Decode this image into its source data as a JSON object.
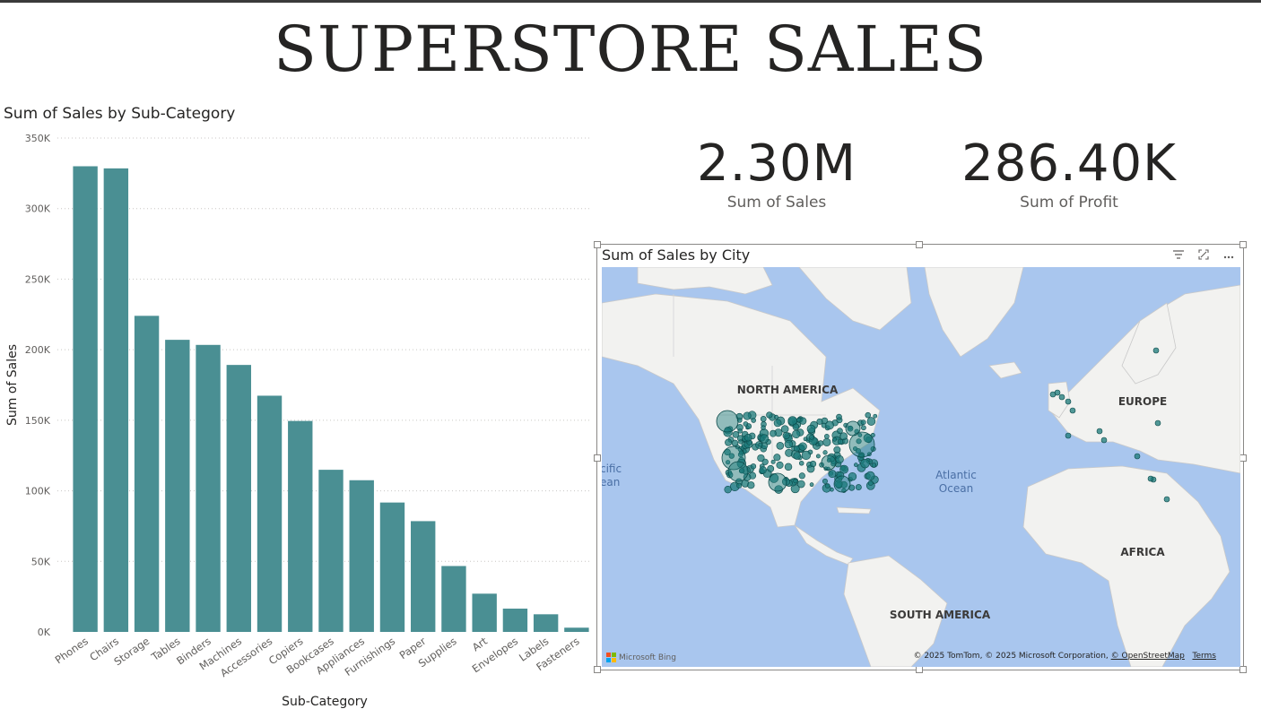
{
  "page": {
    "title": "SUPERSTORE SALES"
  },
  "kpis": [
    {
      "value": "2.30M",
      "label": "Sum of Sales"
    },
    {
      "value": "286.40K",
      "label": "Sum of Profit"
    }
  ],
  "chart_data": [
    {
      "type": "bar",
      "title": "Sum of Sales by Sub-Category",
      "xlabel": "Sub-Category",
      "ylabel": "Sum of Sales",
      "categories": [
        "Phones",
        "Chairs",
        "Storage",
        "Tables",
        "Binders",
        "Machines",
        "Accessories",
        "Copiers",
        "Bookcases",
        "Appliances",
        "Furnishings",
        "Paper",
        "Supplies",
        "Art",
        "Envelopes",
        "Labels",
        "Fasteners"
      ],
      "values": [
        330000,
        328500,
        224000,
        207000,
        203400,
        189200,
        167400,
        149500,
        114900,
        107500,
        91700,
        78500,
        46700,
        27100,
        16500,
        12500,
        3000
      ],
      "ylim": [
        0,
        350000
      ],
      "yticks": [
        0,
        50000,
        100000,
        150000,
        200000,
        250000,
        300000,
        350000
      ],
      "ytick_labels": [
        "0K",
        "50K",
        "100K",
        "150K",
        "200K",
        "250K",
        "300K",
        "350K"
      ],
      "bar_color": "#4a8f93",
      "grid": true
    },
    {
      "type": "scatter",
      "title": "Sum of Sales by City",
      "map_labels": [
        "NORTH AMERICA",
        "EUROPE",
        "AFRICA",
        "SOUTH AMERICA",
        "Atlantic",
        "Ocean",
        "cific",
        "ean"
      ],
      "bubble_color": "#1b7a7a"
    }
  ],
  "map": {
    "toolbar_icons": [
      "filter-icon",
      "focus-mode-icon",
      "more-options-icon"
    ],
    "logo_text": "Microsoft Bing",
    "attribution": "© 2025 TomTom, © 2025 Microsoft Corporation,",
    "attribution_link": "© OpenStreetMap",
    "terms": "Terms",
    "water_color": "#a9c6ee",
    "land_color": "#f2f2f0"
  }
}
